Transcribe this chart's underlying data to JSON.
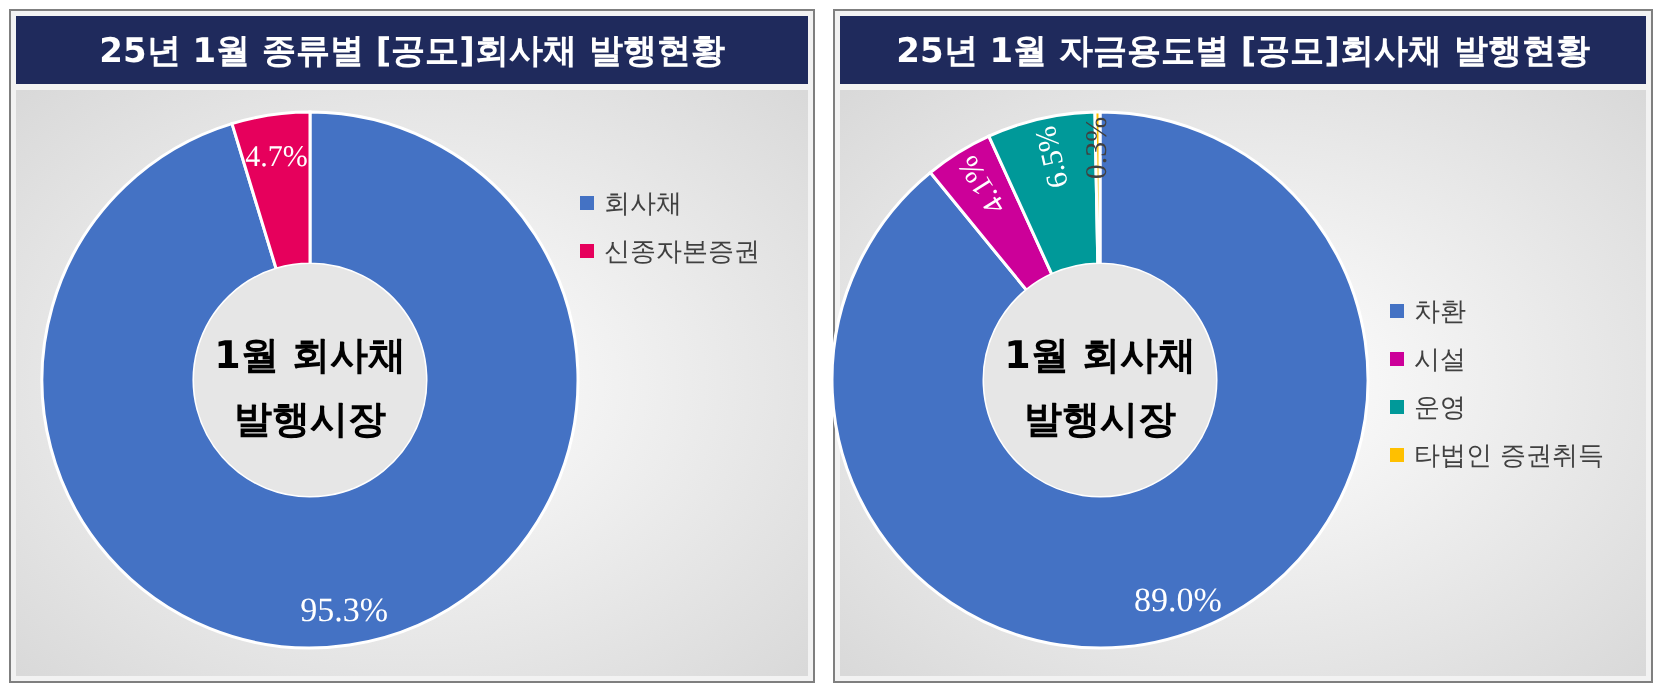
{
  "chart_data": [
    {
      "type": "donut",
      "title": "25년 1월 종류별 [공모]회사채 발행현황",
      "categories": [
        "회사채",
        "신종자본증권"
      ],
      "values": [
        95.3,
        4.7
      ],
      "colors": [
        "#4472c4",
        "#e6005c"
      ],
      "value_labels": [
        "95.3%",
        "4.7%"
      ],
      "annotations": [
        "1월 회사채 발행시장"
      ],
      "legend": "right"
    },
    {
      "type": "donut",
      "title": "25년 1월 자금용도별 [공모]회사채 발행현황",
      "categories": [
        "차환",
        "시설",
        "운영",
        "타법인 증권취득"
      ],
      "values": [
        89.0,
        4.1,
        6.5,
        0.3
      ],
      "colors": [
        "#4472c4",
        "#cc0099",
        "#009999",
        "#ffc000"
      ],
      "value_labels": [
        "89.0%",
        "4.1%",
        "6.5%",
        "0.3%"
      ],
      "annotations": [
        "1월 회사채 발행시장"
      ],
      "legend": "right"
    }
  ]
}
